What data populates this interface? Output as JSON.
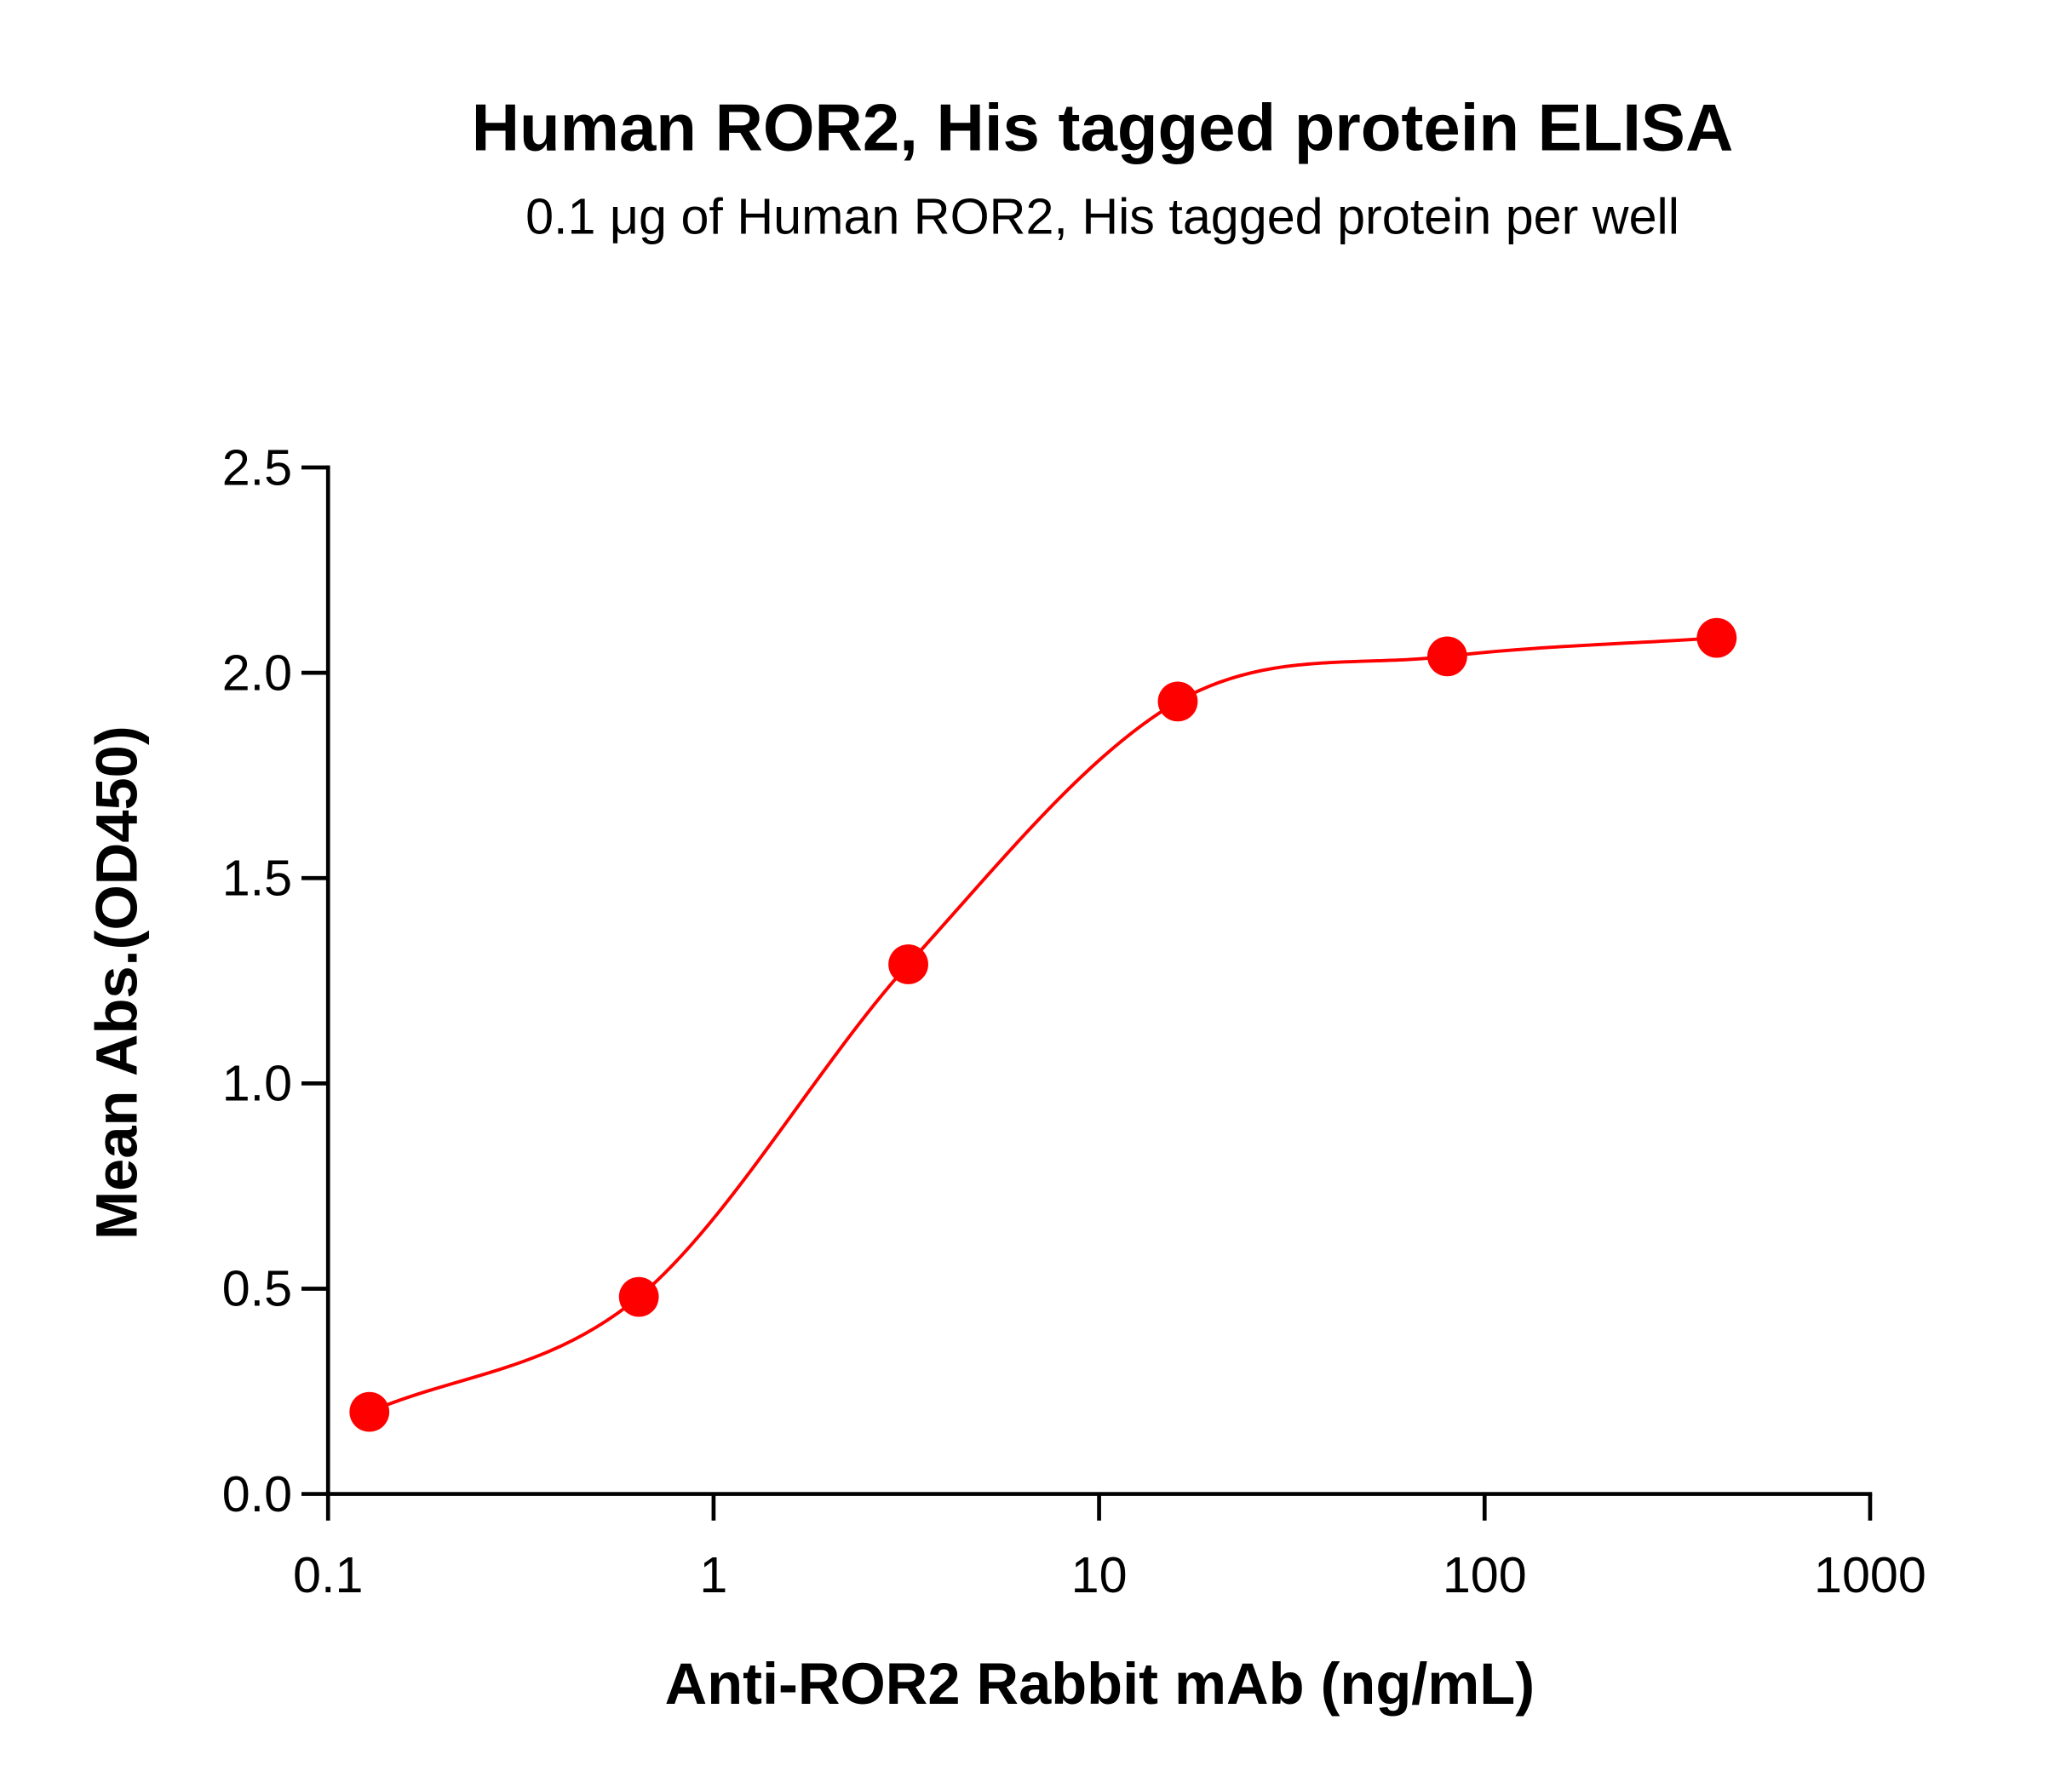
{
  "chart_data": {
    "type": "line",
    "title": "Human ROR2, His tagged protein ELISA",
    "subtitle": "0.1 μg of Human ROR2, His tagged protein per well",
    "x_label": "Anti-ROR2 Rabbit mAb (ng/mL)",
    "y_label": "Mean Abs.(OD450)",
    "x": [
      0.128,
      0.64,
      3.2,
      16,
      80,
      400
    ],
    "values": [
      0.2,
      0.48,
      1.29,
      1.93,
      2.04,
      2.085
    ],
    "color": "#ff0000",
    "x_scale": "log",
    "xlim": [
      0.1,
      1000
    ],
    "xticks": [
      0.1,
      1,
      10,
      100,
      1000
    ],
    "ylim": [
      0,
      2.5
    ],
    "yticks": [
      {
        "value": 0,
        "label": "0.0"
      },
      0.5,
      {
        "value": 1,
        "label": "1.0"
      },
      1.5,
      {
        "value": 2,
        "label": "2.0"
      },
      2.5
    ]
  }
}
